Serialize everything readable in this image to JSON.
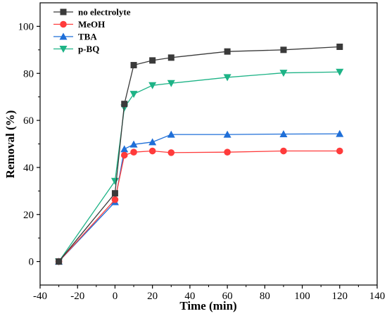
{
  "chart_data": {
    "type": "line",
    "xlabel": "Time (min)",
    "ylabel": "Removal (%)",
    "xlim": [
      -40,
      140
    ],
    "ylim": [
      -10,
      110
    ],
    "xticks": [
      -40,
      -20,
      0,
      20,
      40,
      60,
      80,
      100,
      120,
      140
    ],
    "yticks": [
      0,
      20,
      40,
      60,
      80,
      100
    ],
    "grid": false,
    "legend": "top-left",
    "series": [
      {
        "name": "no electrolyte",
        "color": "#3a3a3a",
        "marker": "square",
        "x": [
          -30,
          0,
          5,
          10,
          20,
          30,
          60,
          90,
          120
        ],
        "y": [
          0,
          29,
          67,
          83.5,
          85.5,
          86.7,
          89.3,
          90,
          91.3
        ]
      },
      {
        "name": "MeOH",
        "color": "#ff3b3b",
        "marker": "circle",
        "x": [
          -30,
          0,
          5,
          10,
          20,
          30,
          60,
          90,
          120
        ],
        "y": [
          0,
          26.3,
          45.2,
          46.5,
          47,
          46.3,
          46.5,
          47,
          47
        ]
      },
      {
        "name": "TBA",
        "color": "#1f6fd8",
        "marker": "triangle-up",
        "x": [
          -30,
          0,
          5,
          10,
          20,
          30,
          60,
          90,
          120
        ],
        "y": [
          0,
          25.3,
          47.8,
          49.8,
          50.8,
          54,
          54,
          54.2,
          54.3
        ]
      },
      {
        "name": "p-BQ",
        "color": "#1db386",
        "marker": "triangle-down",
        "x": [
          -30,
          0,
          5,
          10,
          20,
          30,
          60,
          90,
          120
        ],
        "y": [
          0,
          34.2,
          65.4,
          71.2,
          74.9,
          75.8,
          78.3,
          80.2,
          80.6
        ]
      }
    ]
  }
}
